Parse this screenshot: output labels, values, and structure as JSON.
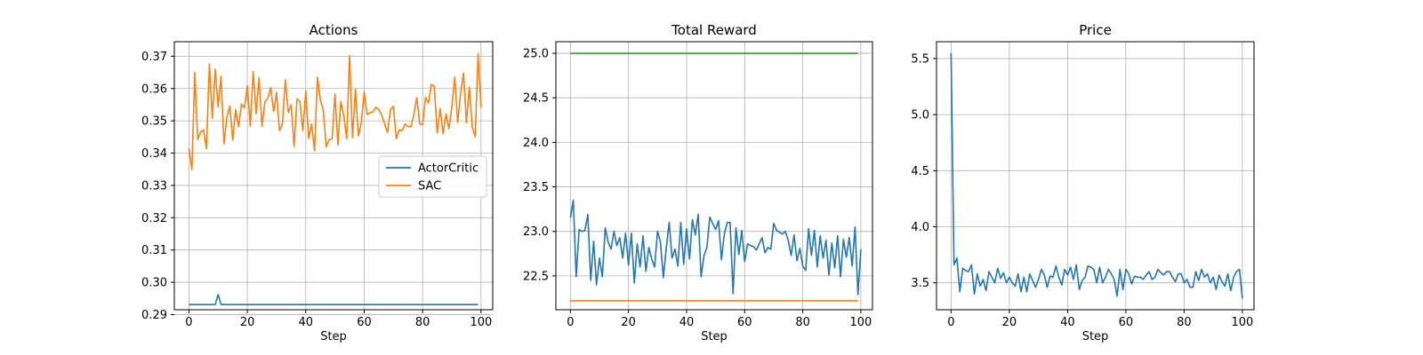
{
  "chart_data": [
    {
      "type": "line",
      "title": "Actions",
      "xlabel": "Step",
      "ylabel": "",
      "xlim": [
        -5,
        104
      ],
      "ylim": [
        0.2915,
        0.3745
      ],
      "xticks": [
        0,
        20,
        40,
        60,
        80,
        100
      ],
      "yticks": [
        0.29,
        0.3,
        0.31,
        0.32,
        0.33,
        0.34,
        0.35,
        0.36,
        0.37
      ],
      "ytick_labels": [
        "0.29",
        "0.30",
        "0.31",
        "0.32",
        "0.33",
        "0.34",
        "0.35",
        "0.36",
        "0.37"
      ],
      "grid": true,
      "legend": "center-right",
      "series": [
        {
          "name": "ActorCritic",
          "color": "#1f77b4",
          "x": [
            0,
            9,
            10,
            11,
            99
          ],
          "values": [
            0.2931,
            0.2931,
            0.2962,
            0.2931,
            0.2931
          ]
        },
        {
          "name": "SAC",
          "color": "#ff7f0e",
          "values": [
            0.3415,
            0.3349,
            0.365,
            0.3442,
            0.3465,
            0.3472,
            0.3414,
            0.3676,
            0.3508,
            0.366,
            0.3542,
            0.3638,
            0.3429,
            0.3512,
            0.3546,
            0.344,
            0.3535,
            0.3482,
            0.3552,
            0.354,
            0.3609,
            0.3483,
            0.3653,
            0.3522,
            0.3634,
            0.3483,
            0.3558,
            0.357,
            0.3603,
            0.3528,
            0.3588,
            0.347,
            0.349,
            0.3627,
            0.3526,
            0.355,
            0.342,
            0.3568,
            0.356,
            0.347,
            0.3592,
            0.3445,
            0.349,
            0.3407,
            0.3635,
            0.3564,
            0.3532,
            0.342,
            0.3442,
            0.3443,
            0.3583,
            0.3425,
            0.356,
            0.3517,
            0.3445,
            0.3702,
            0.3448,
            0.3599,
            0.3453,
            0.3492,
            0.359,
            0.352,
            0.3525,
            0.3528,
            0.3542,
            0.3535,
            0.3518,
            0.349,
            0.3464,
            0.3535,
            0.3545,
            0.3445,
            0.3472,
            0.347,
            0.349,
            0.3482,
            0.3482,
            0.3519,
            0.3572,
            0.3491,
            0.3488,
            0.3573,
            0.3555,
            0.3613,
            0.3607,
            0.3462,
            0.3538,
            0.346,
            0.3522,
            0.3476,
            0.3541,
            0.3636,
            0.3495,
            0.3585,
            0.3648,
            0.3494,
            0.3605,
            0.348,
            0.3451,
            0.3708,
            0.3542
          ]
        }
      ]
    },
    {
      "type": "line",
      "title": "Total Reward",
      "xlabel": "Step",
      "ylabel": "",
      "xlim": [
        -5,
        104
      ],
      "ylim": [
        22.12,
        25.13
      ],
      "xticks": [
        0,
        20,
        40,
        60,
        80,
        100
      ],
      "yticks": [
        22.5,
        23.0,
        23.5,
        24.0,
        24.5,
        25.0
      ],
      "ytick_labels": [
        "22.5",
        "23.0",
        "23.5",
        "24.0",
        "24.5",
        "25.0"
      ],
      "grid": true,
      "series": [
        {
          "color": "#2ca02c",
          "x": [
            0,
            99
          ],
          "values": [
            25.0,
            25.0
          ]
        },
        {
          "color": "#ff7f0e",
          "x": [
            0,
            99
          ],
          "values": [
            22.22,
            22.22
          ]
        },
        {
          "color": "#1f77b4",
          "values": [
            23.15,
            23.35,
            22.49,
            23.02,
            23.0,
            23.01,
            23.19,
            22.45,
            22.89,
            22.4,
            22.7,
            22.49,
            23.04,
            22.88,
            22.8,
            23.0,
            22.84,
            22.93,
            22.7,
            22.98,
            22.62,
            22.98,
            22.42,
            22.86,
            22.6,
            22.95,
            22.55,
            22.82,
            22.69,
            22.6,
            23.0,
            22.88,
            22.48,
            22.81,
            23.1,
            22.7,
            22.8,
            22.61,
            23.1,
            22.63,
            23.03,
            22.69,
            23.13,
            22.96,
            23.19,
            22.49,
            22.73,
            22.82,
            23.16,
            23.09,
            23.02,
            23.12,
            22.68,
            22.97,
            23.1,
            23.1,
            22.3,
            23.04,
            22.74,
            23.01,
            22.66,
            22.86,
            22.84,
            22.83,
            22.79,
            22.86,
            22.93,
            22.76,
            22.82,
            22.8,
            23.09,
            23.01,
            22.99,
            22.97,
            23.0,
            22.9,
            22.73,
            22.96,
            22.67,
            22.81,
            22.61,
            22.56,
            23.03,
            22.73,
            23.01,
            22.6,
            22.95,
            22.7,
            22.9,
            22.51,
            22.87,
            22.59,
            22.95,
            22.49,
            22.91,
            22.71,
            22.93,
            22.61,
            23.05,
            22.29,
            22.8
          ]
        }
      ]
    },
    {
      "type": "line",
      "title": "Price",
      "xlabel": "Step",
      "ylabel": "",
      "xlim": [
        -5,
        104
      ],
      "ylim": [
        3.26,
        5.65
      ],
      "xticks": [
        0,
        20,
        40,
        60,
        80,
        100
      ],
      "yticks": [
        3.5,
        4.0,
        4.5,
        5.0,
        5.5
      ],
      "ytick_labels": [
        "3.5",
        "4.0",
        "4.5",
        "5.0",
        "5.5"
      ],
      "grid": true,
      "series": [
        {
          "color": "#1f77b4",
          "values": [
            5.55,
            3.66,
            3.72,
            3.42,
            3.63,
            3.61,
            3.6,
            3.66,
            3.4,
            3.58,
            3.47,
            3.53,
            3.43,
            3.6,
            3.55,
            3.5,
            3.63,
            3.54,
            3.59,
            3.5,
            3.55,
            3.5,
            3.47,
            3.58,
            3.42,
            3.55,
            3.42,
            3.58,
            3.52,
            3.46,
            3.53,
            3.62,
            3.57,
            3.46,
            3.56,
            3.55,
            3.65,
            3.55,
            3.48,
            3.62,
            3.57,
            3.64,
            3.53,
            3.66,
            3.44,
            3.52,
            3.55,
            3.65,
            3.64,
            3.62,
            3.5,
            3.64,
            3.5,
            3.55,
            3.62,
            3.58,
            3.53,
            3.38,
            3.62,
            3.44,
            3.62,
            3.58,
            3.49,
            3.56,
            3.55,
            3.55,
            3.53,
            3.57,
            3.6,
            3.53,
            3.55,
            3.62,
            3.59,
            3.57,
            3.6,
            3.6,
            3.55,
            3.51,
            3.58,
            3.58,
            3.5,
            3.53,
            3.46,
            3.46,
            3.6,
            3.52,
            3.62,
            3.55,
            3.58,
            3.5,
            3.55,
            3.44,
            3.57,
            3.51,
            3.47,
            3.58,
            3.43,
            3.55,
            3.6,
            3.62,
            3.36
          ]
        }
      ]
    }
  ]
}
